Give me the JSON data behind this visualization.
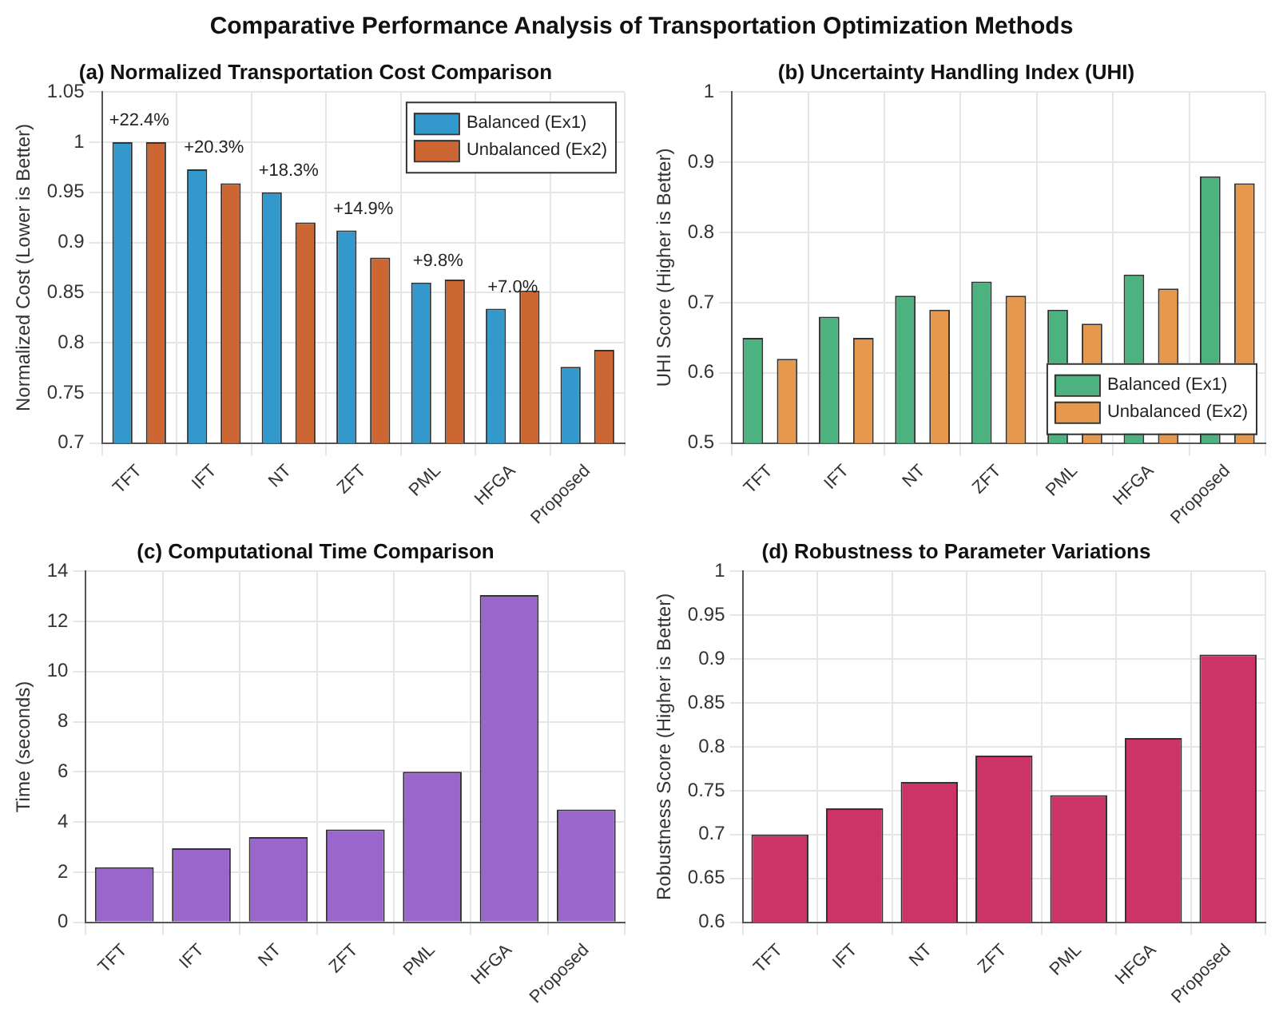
{
  "chart_data": [
    {
      "type": "bar",
      "title": "(a) Normalized Transportation Cost Comparison",
      "ylabel": "Normalized Cost (Lower is Better)",
      "categories": [
        "TFT",
        "IFT",
        "NT",
        "ZFT",
        "PML",
        "HFGA",
        "Proposed"
      ],
      "series": [
        {
          "name": "Balanced (Ex1)",
          "color": "#3399cc",
          "values": [
            1.0,
            0.973,
            0.95,
            0.912,
            0.86,
            0.834,
            0.776
          ]
        },
        {
          "name": "Unbalanced (Ex2)",
          "color": "#cc6633",
          "values": [
            1.0,
            0.959,
            0.92,
            0.885,
            0.863,
            0.852,
            0.793
          ]
        }
      ],
      "ylim": [
        0.7,
        1.05
      ],
      "yticks": [
        0.7,
        0.75,
        0.8,
        0.85,
        0.9,
        0.95,
        1,
        1.05
      ],
      "grid": true,
      "legend": "top right",
      "annotations": [
        "Comparative Performance Analysis of Transportation Optimization Methods",
        {
          "text": "+22.4%",
          "x": "TFT",
          "y": 1.0
        },
        {
          "text": "+20.3%",
          "x": "IFT",
          "y": 0.973
        },
        {
          "text": "+18.3%",
          "x": "NT",
          "y": 0.95
        },
        {
          "text": "+14.9%",
          "x": "ZFT",
          "y": 0.912
        },
        {
          "text": "+9.8%",
          "x": "PML",
          "y": 0.86
        },
        {
          "text": "+7.0%",
          "x": "HFGA",
          "y": 0.834
        }
      ]
    },
    {
      "type": "bar",
      "title": "(b) Uncertainty Handling Index (UHI)",
      "ylabel": "UHI Score (Higher is Better)",
      "categories": [
        "TFT",
        "IFT",
        "NT",
        "ZFT",
        "PML",
        "HFGA",
        "Proposed"
      ],
      "series": [
        {
          "name": "Balanced (Ex1)",
          "color": "#4cb27f",
          "values": [
            0.65,
            0.68,
            0.71,
            0.73,
            0.69,
            0.74,
            0.88
          ]
        },
        {
          "name": "Unbalanced (Ex2)",
          "color": "#e6994c",
          "values": [
            0.62,
            0.65,
            0.69,
            0.71,
            0.67,
            0.72,
            0.87
          ]
        }
      ],
      "ylim": [
        0.5,
        1
      ],
      "yticks": [
        0.5,
        0.6,
        0.7,
        0.8,
        0.9,
        1
      ],
      "grid": true,
      "legend": "bottom right"
    },
    {
      "type": "bar",
      "title": "(c) Computational Time Comparison",
      "ylabel": "Time (seconds)",
      "categories": [
        "TFT",
        "IFT",
        "NT",
        "ZFT",
        "PML",
        "HFGA",
        "Proposed"
      ],
      "values": [
        2.2,
        2.95,
        3.4,
        3.7,
        6.0,
        13.05,
        4.5
      ],
      "color": "#9966cc",
      "ylim": [
        0,
        14
      ],
      "yticks": [
        0,
        2,
        4,
        6,
        8,
        10,
        12,
        14
      ],
      "grid": true
    },
    {
      "type": "bar",
      "title": "(d) Robustness to Parameter Variations",
      "ylabel": "Robustness Score (Higher is Better)",
      "categories": [
        "TFT",
        "IFT",
        "NT",
        "ZFT",
        "PML",
        "HFGA",
        "Proposed"
      ],
      "values": [
        0.7,
        0.73,
        0.76,
        0.79,
        0.745,
        0.81,
        0.905
      ],
      "color": "#cc3366",
      "ylim": [
        0.6,
        1
      ],
      "yticks": [
        0.6,
        0.65,
        0.7,
        0.75,
        0.8,
        0.85,
        0.9,
        0.95,
        1
      ],
      "grid": true
    }
  ]
}
